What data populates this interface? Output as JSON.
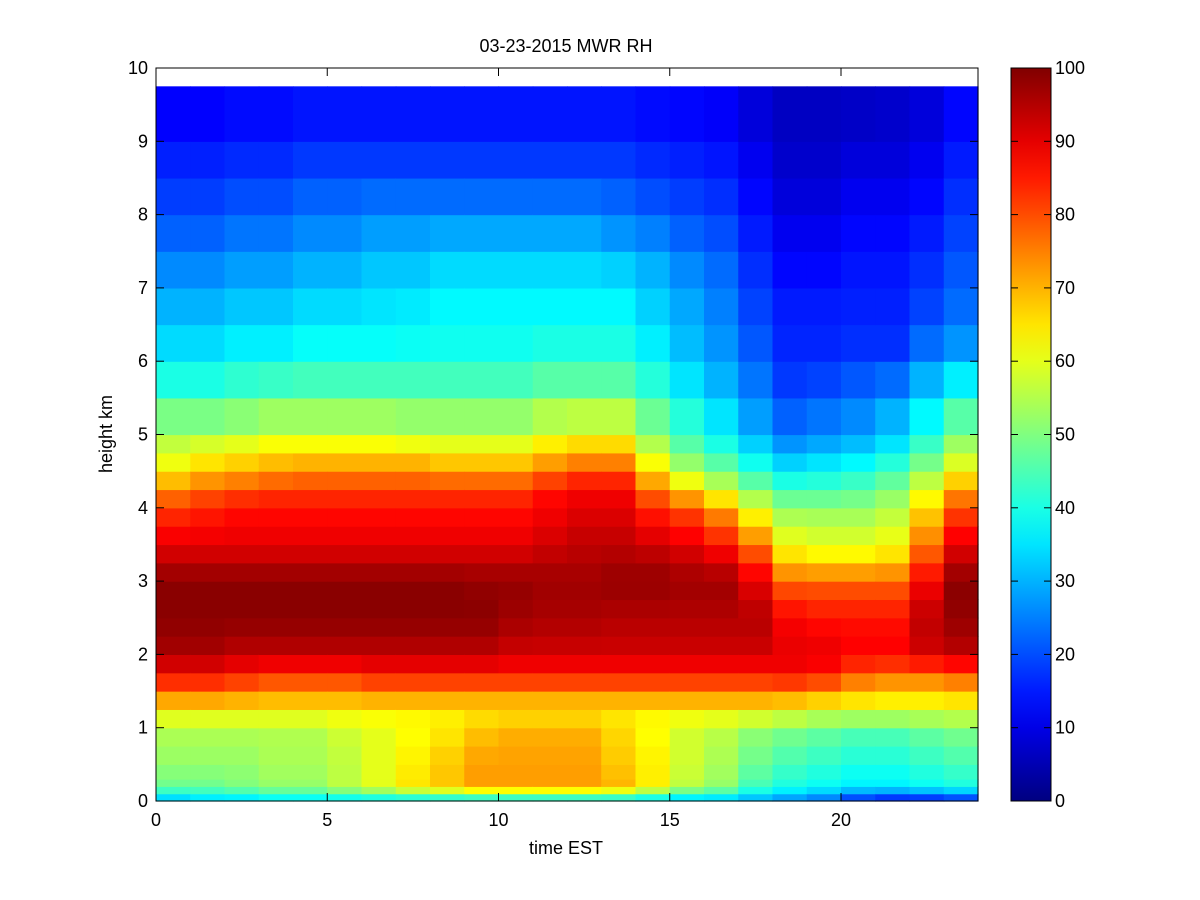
{
  "chart_data": {
    "type": "heatmap",
    "title": "03-23-2015 MWR RH",
    "xlabel": "time EST",
    "ylabel": "height km",
    "xlim": [
      0,
      24
    ],
    "ylim": [
      0,
      10
    ],
    "x_ticks": [
      0,
      5,
      10,
      15,
      20
    ],
    "y_ticks": [
      0,
      1,
      2,
      3,
      4,
      5,
      6,
      7,
      8,
      9,
      10
    ],
    "colorbar": {
      "colormap": "jet",
      "range": [
        0,
        100
      ],
      "ticks": [
        0,
        10,
        20,
        30,
        40,
        50,
        60,
        70,
        80,
        90,
        100
      ]
    },
    "time_step_hours": 1,
    "x": [
      0,
      1,
      2,
      3,
      4,
      5,
      6,
      7,
      8,
      9,
      10,
      11,
      12,
      13,
      14,
      15,
      16,
      17,
      18,
      19,
      20,
      21,
      22,
      23
    ],
    "heights_km": [
      0.0,
      0.1,
      0.2,
      0.3,
      0.5,
      0.75,
      1.0,
      1.25,
      1.5,
      1.75,
      2.0,
      2.25,
      2.5,
      2.75,
      3.0,
      3.25,
      3.5,
      3.75,
      4.0,
      4.25,
      4.5,
      4.75,
      5.0,
      5.5,
      6.0,
      6.5,
      7.0,
      7.5,
      8.0,
      8.5,
      9.0,
      9.75
    ],
    "profiles": [
      {
        "h": 0.0,
        "values": [
          30,
          32,
          32,
          34,
          34,
          34,
          34,
          34,
          34,
          34,
          34,
          34,
          34,
          34,
          32,
          30,
          30,
          28,
          25,
          22,
          15,
          12,
          12,
          14
        ]
      },
      {
        "h": 0.2,
        "values": [
          48,
          48,
          50,
          52,
          52,
          56,
          60,
          65,
          68,
          72,
          72,
          72,
          72,
          70,
          64,
          56,
          52,
          44,
          40,
          38,
          36,
          36,
          38,
          40
        ]
      },
      {
        "h": 0.5,
        "values": [
          52,
          52,
          52,
          54,
          54,
          56,
          60,
          64,
          68,
          72,
          72,
          72,
          72,
          68,
          64,
          58,
          54,
          48,
          44,
          42,
          40,
          40,
          42,
          44
        ]
      },
      {
        "h": 1.0,
        "values": [
          55,
          55,
          55,
          55,
          55,
          58,
          60,
          62,
          64,
          68,
          70,
          70,
          70,
          66,
          62,
          58,
          56,
          52,
          50,
          48,
          46,
          46,
          48,
          50
        ]
      },
      {
        "h": 1.25,
        "values": [
          64,
          64,
          64,
          64,
          64,
          64,
          64,
          64,
          64,
          64,
          64,
          64,
          64,
          64,
          64,
          64,
          64,
          64,
          62,
          60,
          60,
          60,
          60,
          60
        ]
      },
      {
        "h": 1.5,
        "values": [
          78,
          78,
          76,
          74,
          74,
          74,
          76,
          76,
          76,
          76,
          76,
          76,
          76,
          76,
          76,
          76,
          76,
          76,
          76,
          74,
          70,
          68,
          68,
          70
        ]
      },
      {
        "h": 1.75,
        "values": [
          88,
          88,
          86,
          84,
          84,
          84,
          86,
          86,
          86,
          86,
          86,
          86,
          86,
          86,
          86,
          86,
          86,
          86,
          88,
          86,
          80,
          78,
          78,
          80
        ]
      },
      {
        "h": 2.0,
        "values": [
          96,
          96,
          94,
          94,
          94,
          94,
          94,
          94,
          94,
          94,
          92,
          92,
          92,
          92,
          92,
          92,
          92,
          92,
          90,
          90,
          88,
          88,
          92,
          94
        ]
      },
      {
        "h": 2.5,
        "values": [
          99,
          99,
          99,
          99,
          99,
          99,
          99,
          99,
          99,
          99,
          97,
          96,
          96,
          95,
          95,
          95,
          95,
          95,
          88,
          86,
          86,
          86,
          94,
          98
        ]
      },
      {
        "h": 3.0,
        "values": [
          99,
          99,
          99,
          99,
          99,
          99,
          99,
          99,
          99,
          98,
          98,
          97,
          97,
          98,
          98,
          97,
          97,
          90,
          78,
          78,
          78,
          78,
          88,
          99
        ]
      },
      {
        "h": 3.25,
        "values": [
          94,
          94,
          94,
          94,
          94,
          94,
          94,
          94,
          94,
          94,
          94,
          95,
          95,
          96,
          96,
          94,
          92,
          84,
          68,
          66,
          66,
          68,
          82,
          94
        ]
      },
      {
        "h": 3.5,
        "values": [
          90,
          90,
          90,
          90,
          90,
          90,
          90,
          90,
          90,
          90,
          90,
          92,
          94,
          94,
          92,
          90,
          86,
          76,
          62,
          60,
          60,
          62,
          76,
          90
        ]
      },
      {
        "h": 4.0,
        "values": [
          82,
          84,
          86,
          86,
          86,
          86,
          86,
          86,
          86,
          86,
          86,
          88,
          90,
          90,
          84,
          80,
          72,
          60,
          52,
          52,
          52,
          55,
          66,
          80
        ]
      },
      {
        "h": 4.25,
        "values": [
          74,
          78,
          80,
          82,
          82,
          82,
          82,
          82,
          82,
          82,
          82,
          86,
          88,
          88,
          76,
          66,
          58,
          50,
          44,
          44,
          46,
          50,
          60,
          72
        ]
      },
      {
        "h": 4.5,
        "values": [
          64,
          68,
          70,
          72,
          74,
          74,
          74,
          74,
          72,
          72,
          72,
          76,
          80,
          80,
          66,
          56,
          50,
          42,
          36,
          38,
          40,
          44,
          52,
          62
        ]
      },
      {
        "h": 4.75,
        "values": [
          58,
          62,
          64,
          66,
          66,
          66,
          66,
          66,
          64,
          64,
          64,
          68,
          70,
          70,
          58,
          48,
          42,
          36,
          30,
          32,
          34,
          38,
          46,
          56
        ]
      },
      {
        "h": 5.0,
        "values": [
          55,
          55,
          56,
          58,
          58,
          58,
          58,
          56,
          56,
          56,
          56,
          60,
          62,
          62,
          52,
          44,
          38,
          30,
          24,
          26,
          28,
          32,
          40,
          50
        ]
      },
      {
        "h": 5.5,
        "values": [
          44,
          44,
          46,
          48,
          48,
          48,
          48,
          48,
          48,
          48,
          48,
          50,
          50,
          50,
          44,
          38,
          32,
          26,
          20,
          22,
          24,
          28,
          34,
          42
        ]
      },
      {
        "h": 6.0,
        "values": [
          36,
          36,
          38,
          38,
          40,
          40,
          40,
          40,
          40,
          40,
          40,
          42,
          42,
          42,
          38,
          32,
          28,
          22,
          16,
          16,
          18,
          18,
          26,
          30
        ]
      },
      {
        "h": 6.5,
        "values": [
          32,
          32,
          34,
          34,
          36,
          36,
          36,
          37,
          38,
          38,
          38,
          38,
          38,
          38,
          34,
          30,
          26,
          20,
          16,
          16,
          16,
          16,
          20,
          24
        ]
      },
      {
        "h": 7.0,
        "values": [
          28,
          28,
          30,
          30,
          32,
          32,
          34,
          34,
          36,
          36,
          36,
          36,
          36,
          36,
          32,
          28,
          24,
          18,
          14,
          14,
          15,
          15,
          18,
          22
        ]
      },
      {
        "h": 7.5,
        "values": [
          24,
          24,
          26,
          26,
          28,
          28,
          30,
          30,
          32,
          32,
          32,
          32,
          32,
          30,
          28,
          24,
          22,
          16,
          12,
          12,
          14,
          14,
          16,
          20
        ]
      },
      {
        "h": 8.0,
        "values": [
          20,
          20,
          22,
          22,
          24,
          24,
          26,
          26,
          26,
          26,
          26,
          26,
          26,
          24,
          22,
          20,
          18,
          14,
          10,
          10,
          12,
          12,
          14,
          18
        ]
      },
      {
        "h": 8.5,
        "values": [
          17,
          17,
          18,
          18,
          20,
          20,
          20,
          20,
          20,
          20,
          20,
          20,
          20,
          20,
          18,
          17,
          16,
          12,
          8,
          8,
          10,
          10,
          12,
          16
        ]
      },
      {
        "h": 9.0,
        "values": [
          14,
          14,
          15,
          15,
          16,
          16,
          16,
          16,
          16,
          16,
          16,
          16,
          16,
          16,
          15,
          14,
          13,
          10,
          7,
          7,
          8,
          8,
          10,
          14
        ]
      },
      {
        "h": 9.75,
        "values": [
          11,
          11,
          12,
          12,
          13,
          13,
          13,
          13,
          13,
          13,
          13,
          13,
          13,
          13,
          12,
          12,
          11,
          8,
          6,
          6,
          6,
          7,
          8,
          12
        ]
      }
    ]
  }
}
